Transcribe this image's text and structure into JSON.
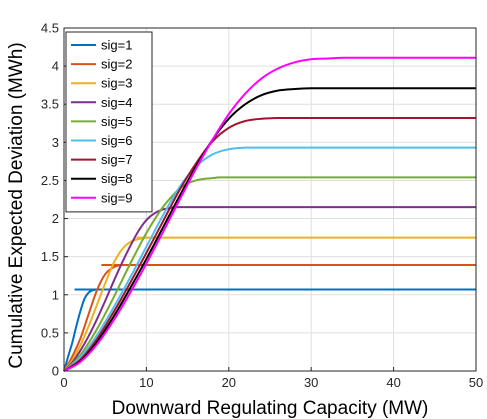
{
  "chart_data": {
    "type": "line",
    "title": "",
    "xlabel": "Downward Regulating Capacity (MW)",
    "ylabel": "Cumulative Expected Deviation (MWh)",
    "xlim": [
      0,
      50
    ],
    "ylim": [
      0,
      4.5
    ],
    "xticks": [
      "0",
      "10",
      "20",
      "30",
      "40",
      "50"
    ],
    "yticks": [
      "0",
      "0.5",
      "1",
      "1.5",
      "2",
      "2.5",
      "3",
      "3.5",
      "4",
      "4.5"
    ],
    "grid": true,
    "legend_position": "top-left",
    "series": [
      {
        "name": "sig=1",
        "color": "#0072BD",
        "x": [
          0,
          0.5,
          1,
          1.5,
          2,
          2.5,
          3,
          3.5,
          4,
          5,
          50
        ],
        "y": [
          0,
          0.19,
          0.37,
          0.59,
          0.79,
          0.95,
          1.03,
          1.06,
          1.07,
          1.07,
          1.07
        ]
      },
      {
        "name": "sig=2",
        "color": "#D95319",
        "x": [
          0,
          1,
          2,
          3,
          4,
          5,
          6,
          7,
          8,
          50
        ],
        "y": [
          0,
          0.19,
          0.43,
          0.75,
          1.06,
          1.27,
          1.36,
          1.39,
          1.39,
          1.39
        ]
      },
      {
        "name": "sig=3",
        "color": "#EDB120",
        "x": [
          0,
          1,
          2,
          3,
          4,
          5,
          6,
          7,
          8,
          9,
          10,
          11,
          12,
          50
        ],
        "y": [
          0,
          0.14,
          0.34,
          0.59,
          0.87,
          1.15,
          1.41,
          1.59,
          1.69,
          1.73,
          1.75,
          1.75,
          1.75,
          1.75
        ]
      },
      {
        "name": "sig=4",
        "color": "#7E2F8E",
        "x": [
          0,
          1,
          2,
          3,
          4,
          5,
          6,
          7,
          8,
          9,
          10,
          11,
          12,
          13,
          14,
          15,
          16,
          50
        ],
        "y": [
          0,
          0.11,
          0.27,
          0.46,
          0.68,
          0.92,
          1.17,
          1.41,
          1.63,
          1.83,
          1.98,
          2.07,
          2.12,
          2.14,
          2.15,
          2.15,
          2.15,
          2.15
        ]
      },
      {
        "name": "sig=5",
        "color": "#77AC30",
        "x": [
          0,
          1,
          2,
          3,
          4,
          5,
          6,
          7,
          8,
          9,
          10,
          11,
          12,
          13,
          14,
          15,
          16,
          17,
          18,
          19,
          20,
          21,
          50
        ],
        "y": [
          0,
          0.09,
          0.21,
          0.37,
          0.55,
          0.75,
          0.96,
          1.18,
          1.4,
          1.61,
          1.81,
          1.99,
          2.15,
          2.28,
          2.39,
          2.46,
          2.5,
          2.52,
          2.53,
          2.54,
          2.54,
          2.54,
          2.54
        ]
      },
      {
        "name": "sig=6",
        "color": "#4DBEEE",
        "x": [
          0,
          2,
          4,
          6,
          8,
          10,
          12,
          14,
          16,
          18,
          20,
          22,
          24,
          26,
          50
        ],
        "y": [
          0,
          0.18,
          0.47,
          0.83,
          1.22,
          1.63,
          2.04,
          2.41,
          2.68,
          2.84,
          2.91,
          2.93,
          2.93,
          2.93,
          2.93
        ]
      },
      {
        "name": "sig=7",
        "color": "#A2142F",
        "x": [
          0,
          2,
          4,
          6,
          8,
          10,
          12,
          14,
          16,
          18,
          20,
          22,
          24,
          26,
          28,
          30,
          50
        ],
        "y": [
          0,
          0.15,
          0.42,
          0.77,
          1.15,
          1.55,
          1.96,
          2.37,
          2.72,
          3.01,
          3.19,
          3.28,
          3.31,
          3.32,
          3.32,
          3.32,
          3.32
        ]
      },
      {
        "name": "sig=8",
        "color": "#000000",
        "x": [
          0,
          2,
          4,
          6,
          8,
          10,
          12,
          14,
          16,
          18,
          20,
          22,
          24,
          26,
          28,
          30,
          32,
          34,
          50
        ],
        "y": [
          0,
          0.13,
          0.38,
          0.71,
          1.08,
          1.47,
          1.88,
          2.29,
          2.68,
          3.03,
          3.31,
          3.5,
          3.62,
          3.68,
          3.7,
          3.71,
          3.71,
          3.71,
          3.71
        ]
      },
      {
        "name": "sig=9",
        "color": "#FF00FF",
        "x": [
          0,
          2,
          4,
          6,
          8,
          10,
          12,
          14,
          16,
          18,
          20,
          22,
          24,
          26,
          28,
          30,
          32,
          34,
          36,
          38,
          50
        ],
        "y": [
          0,
          0.12,
          0.35,
          0.66,
          1.02,
          1.41,
          1.82,
          2.24,
          2.65,
          3.03,
          3.37,
          3.64,
          3.84,
          3.97,
          4.05,
          4.09,
          4.1,
          4.11,
          4.11,
          4.11,
          4.11
        ]
      }
    ]
  }
}
